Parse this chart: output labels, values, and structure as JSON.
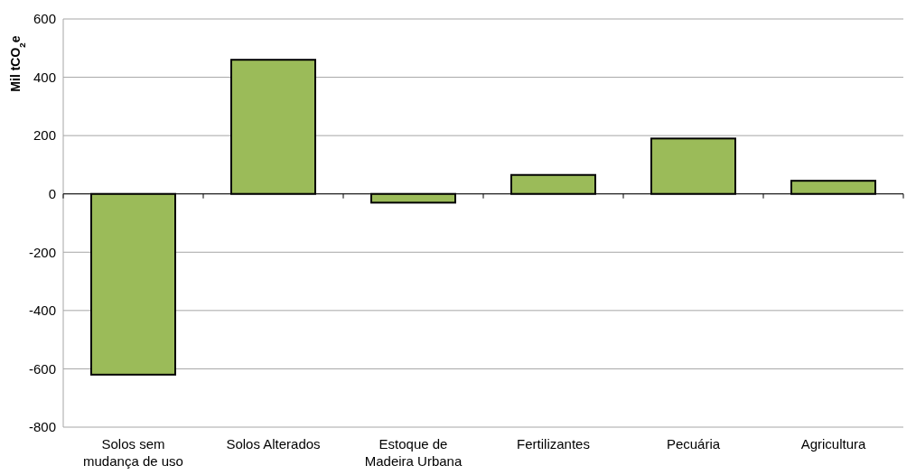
{
  "chart_data": {
    "type": "bar",
    "ylabel": "Mil tCO$_{2}$e",
    "categories": [
      "Solos sem mudança de uso",
      "Solos Alterados",
      "Estoque de Madeira Urbana",
      "Fertilizantes",
      "Pecuária",
      "Agricultura"
    ],
    "values": [
      -620,
      460,
      -30,
      65,
      190,
      45
    ],
    "color": "#9bbb59",
    "ylim": [
      -800,
      600
    ],
    "yticks": [
      -800,
      -600,
      -400,
      -200,
      0,
      200,
      400,
      600
    ],
    "grid": "y"
  }
}
